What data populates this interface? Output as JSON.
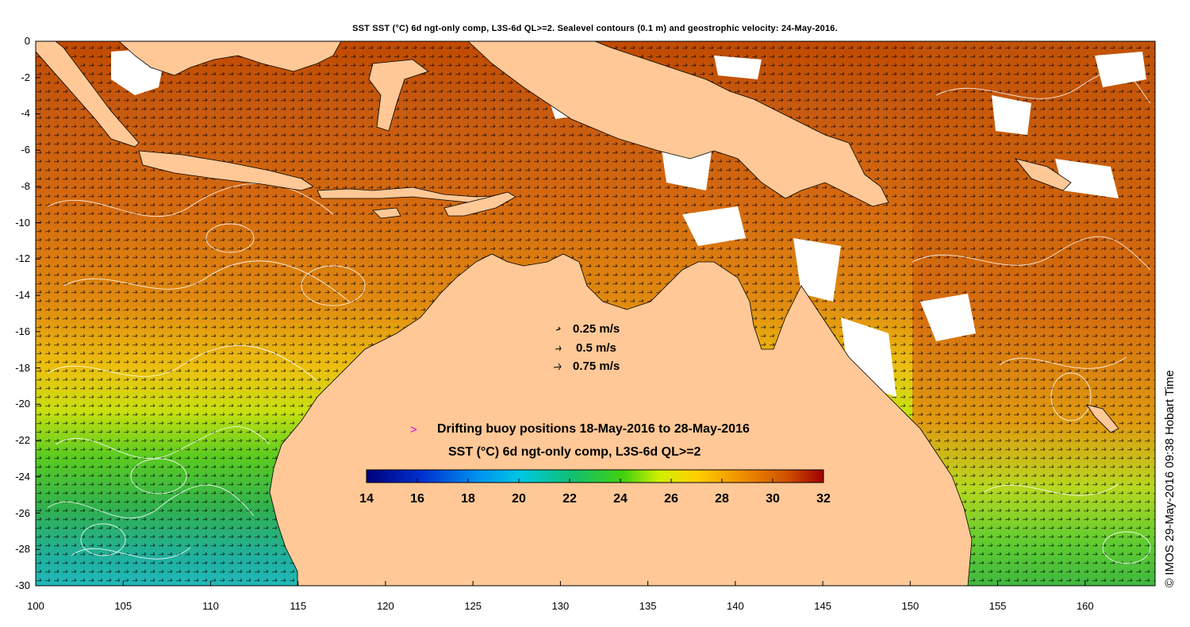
{
  "title": "SST SST (°C) 6d ngt-only comp, L3S-6d QL>=2. Sealevel contours (0.1 m) and geostrophic velocity: 24-May-2016.",
  "credit": "© IMOS 29-May-2016 09:38 Hobart Time",
  "y_ticks": [
    "0",
    "-2",
    "-4",
    "-6",
    "-8",
    "-10",
    "-12",
    "-14",
    "-16",
    "-18",
    "-20",
    "-22",
    "-24",
    "-26",
    "-28",
    "-30"
  ],
  "x_ticks": [
    "100",
    "105",
    "110",
    "115",
    "120",
    "125",
    "130",
    "135",
    "140",
    "145",
    "150",
    "155",
    "160"
  ],
  "velocity_legend": [
    "0.25 m/s",
    "0.5 m/s",
    "0.75 m/s"
  ],
  "buoy_legend": {
    "symbol": ">",
    "label": "Drifting buoy positions 18-May-2016 to 28-May-2016",
    "color": "#e000e0"
  },
  "colorbar": {
    "title": "SST (°C) 6d ngt-only comp, L3S-6d QL>=2",
    "ticks": [
      "14",
      "16",
      "18",
      "20",
      "22",
      "24",
      "26",
      "28",
      "30",
      "32"
    ],
    "min": 14,
    "max": 32
  },
  "map": {
    "lon_range": [
      100,
      164
    ],
    "lat_range": [
      -30,
      0
    ],
    "land_color": "#ffc896"
  }
}
